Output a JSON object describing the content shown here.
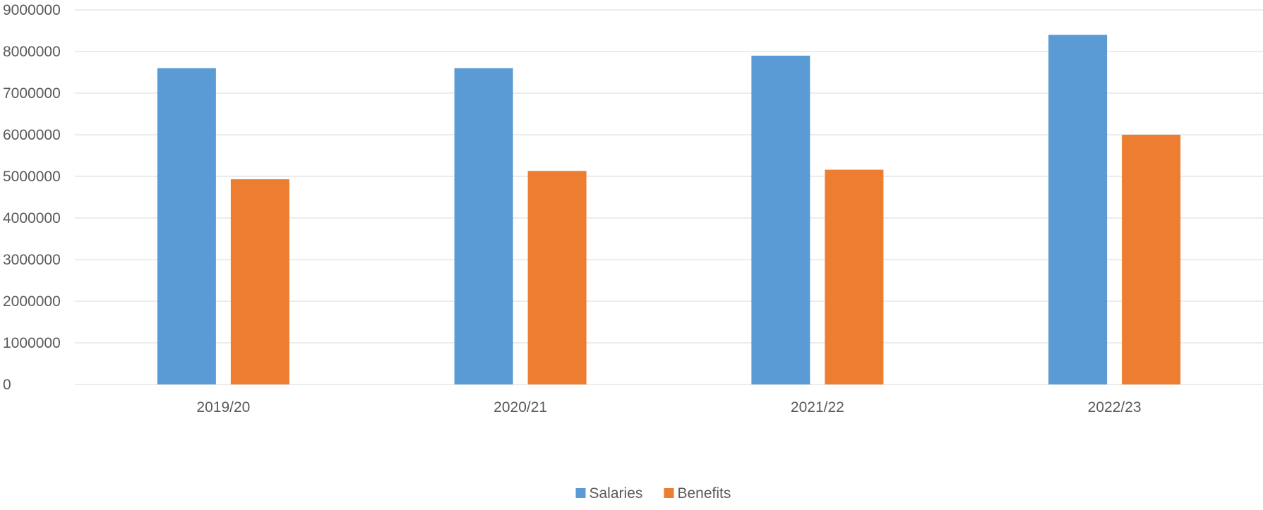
{
  "chart_data": {
    "type": "bar",
    "title": "",
    "xlabel": "",
    "ylabel": "",
    "categories": [
      "2019/20",
      "2020/21",
      "2021/22",
      "2022/23"
    ],
    "series": [
      {
        "name": "Salaries",
        "color": "#5b9bd5",
        "values": [
          7600000,
          7600000,
          7900000,
          8400000
        ]
      },
      {
        "name": "Benefits",
        "color": "#ed7d31",
        "values": [
          4930000,
          5130000,
          5160000,
          6000000
        ]
      }
    ],
    "ylim": [
      0,
      9000000
    ],
    "yticks": [
      "0",
      "1000000",
      "2000000",
      "3000000",
      "4000000",
      "5000000",
      "6000000",
      "7000000",
      "8000000",
      "9000000"
    ],
    "grid": true,
    "legend_position": "bottom"
  }
}
